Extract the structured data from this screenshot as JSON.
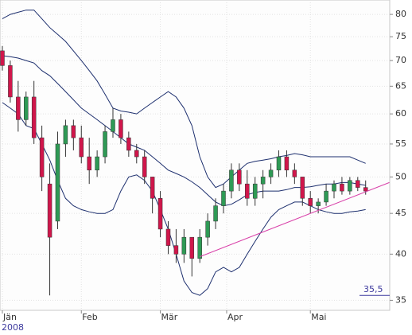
{
  "chart_data": {
    "type": "candlestick",
    "log_scale": true,
    "grid": true,
    "ylim": [
      34,
      83.4
    ],
    "yticks": [
      35,
      40,
      45,
      50,
      55,
      60,
      65,
      70,
      75,
      80
    ],
    "xlim": [
      -0.3,
      49.05
    ],
    "xticks": [
      {
        "value": 0,
        "label": "Jän"
      },
      {
        "value": 10,
        "label": "Feb"
      },
      {
        "value": 20,
        "label": "Mär"
      },
      {
        "value": 28.4,
        "label": "Apr"
      },
      {
        "value": 39,
        "label": "Mai"
      }
    ],
    "year_label": "2008",
    "up_color": "#2e9a55",
    "down_color": "#d0164b",
    "ohlc": [
      [
        72,
        73,
        68,
        69
      ],
      [
        69,
        70,
        62,
        63
      ],
      [
        63,
        66,
        57,
        59
      ],
      [
        59,
        64,
        58,
        63
      ],
      [
        63,
        66,
        55,
        56
      ],
      [
        56,
        58,
        48,
        50
      ],
      [
        49,
        52,
        35.5,
        42
      ],
      [
        44,
        57,
        43,
        55
      ],
      [
        55,
        59,
        53,
        58
      ],
      [
        58,
        59,
        54,
        56
      ],
      [
        56,
        58,
        52,
        53
      ],
      [
        53,
        56,
        49,
        51
      ],
      [
        51,
        54,
        50,
        53
      ],
      [
        53,
        58,
        52,
        57
      ],
      [
        57,
        61,
        56,
        59
      ],
      [
        59,
        60,
        55,
        56
      ],
      [
        56,
        57,
        53,
        54
      ],
      [
        54,
        55,
        52,
        53
      ],
      [
        53,
        54,
        49,
        50
      ],
      [
        50,
        50,
        45,
        47
      ],
      [
        47,
        48,
        42,
        43
      ],
      [
        43,
        44,
        40,
        41
      ],
      [
        41,
        43,
        39,
        40
      ],
      [
        40,
        43,
        39,
        42
      ],
      [
        42,
        42,
        37.5,
        39.5
      ],
      [
        39.5,
        43,
        39,
        42
      ],
      [
        42,
        45,
        41,
        44
      ],
      [
        44,
        47,
        43,
        46
      ],
      [
        46,
        49,
        45,
        48
      ],
      [
        48,
        52,
        47,
        51
      ],
      [
        51,
        52,
        48,
        49
      ],
      [
        49,
        51,
        46,
        47
      ],
      [
        47,
        50,
        46,
        49
      ],
      [
        49,
        51,
        47,
        50
      ],
      [
        50,
        52,
        49,
        51
      ],
      [
        51,
        54,
        50,
        53
      ],
      [
        53,
        54,
        50,
        51
      ],
      [
        51,
        52,
        49,
        50
      ],
      [
        50,
        50,
        46,
        47
      ],
      [
        47,
        48,
        45,
        46
      ],
      [
        46,
        47,
        45,
        46.5
      ],
      [
        46.5,
        49,
        46,
        48
      ],
      [
        48,
        49.5,
        47,
        49
      ],
      [
        49,
        50,
        47.5,
        48
      ],
      [
        48,
        50,
        47.5,
        49.5
      ],
      [
        49.5,
        50,
        48,
        48.5
      ],
      [
        48.5,
        49.5,
        47.5,
        48
      ]
    ],
    "bands": [
      {
        "color": "#1d2f6e",
        "values": [
          79,
          80,
          80.5,
          81,
          81,
          79,
          77,
          75.5,
          74,
          72,
          70,
          68,
          66,
          63.5,
          61,
          60.5,
          60.3,
          60,
          61,
          62,
          63,
          64,
          63,
          61,
          58,
          53,
          50,
          48.5,
          49,
          50,
          51,
          52,
          52.3,
          52.5,
          52.7,
          53,
          53.2,
          53.5,
          53.3,
          53,
          53,
          53,
          53,
          53,
          53,
          52.5,
          52
        ]
      },
      {
        "color": "#1d2f6e",
        "values": [
          71,
          70.8,
          70.5,
          70,
          69.5,
          68,
          67,
          65.5,
          64,
          62.5,
          61,
          60,
          59,
          58,
          57,
          56,
          55,
          54.5,
          54,
          53,
          52,
          51,
          50.5,
          50,
          49.3,
          48.5,
          47.5,
          46.5,
          46,
          46.2,
          46.8,
          47.5,
          47.8,
          48,
          48,
          48,
          48.2,
          48.5,
          48.5,
          48.6,
          48.8,
          49,
          49,
          49.2,
          49.2,
          49,
          48.8
        ]
      },
      {
        "color": "#1d2f6e",
        "values": [
          62,
          61,
          60,
          58,
          57.5,
          55,
          52.5,
          49.5,
          47,
          46,
          45.5,
          45.2,
          45,
          45,
          45.5,
          48,
          50,
          50.3,
          49.5,
          48,
          45.5,
          43,
          40,
          37,
          35.8,
          35.5,
          36.2,
          38,
          38.5,
          38,
          38.5,
          40,
          41.5,
          43,
          44.5,
          45.5,
          46,
          46.5,
          46.5,
          46,
          45.5,
          45.2,
          45,
          45,
          45.2,
          45.3,
          45.5
        ]
      }
    ],
    "trendline": {
      "color": "#d83fa8",
      "x": [
        25,
        49
      ],
      "values": [
        39.7,
        49.2
      ]
    },
    "price_marker": {
      "value": 35.5,
      "label": "35,5",
      "color": "#3d3a9e"
    }
  }
}
